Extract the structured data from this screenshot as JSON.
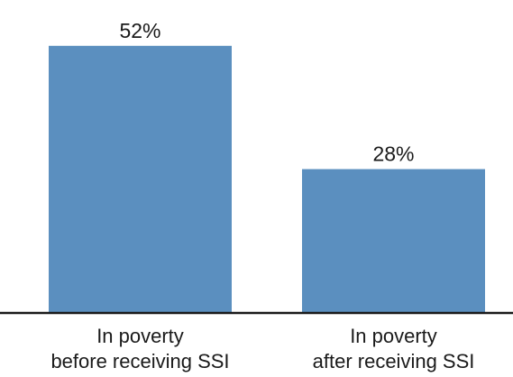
{
  "chart_data": {
    "type": "bar",
    "categories": [
      [
        "In poverty",
        "before receiving SSI"
      ],
      [
        "In poverty",
        "after receiving SSI"
      ]
    ],
    "values": [
      52,
      28
    ],
    "value_labels": [
      "52%",
      "28%"
    ],
    "bar_color": "#5b8fbf",
    "axis_color": "#1a1a1a",
    "ylim": [
      0,
      54.6
    ],
    "grid": false,
    "legend": "none"
  }
}
